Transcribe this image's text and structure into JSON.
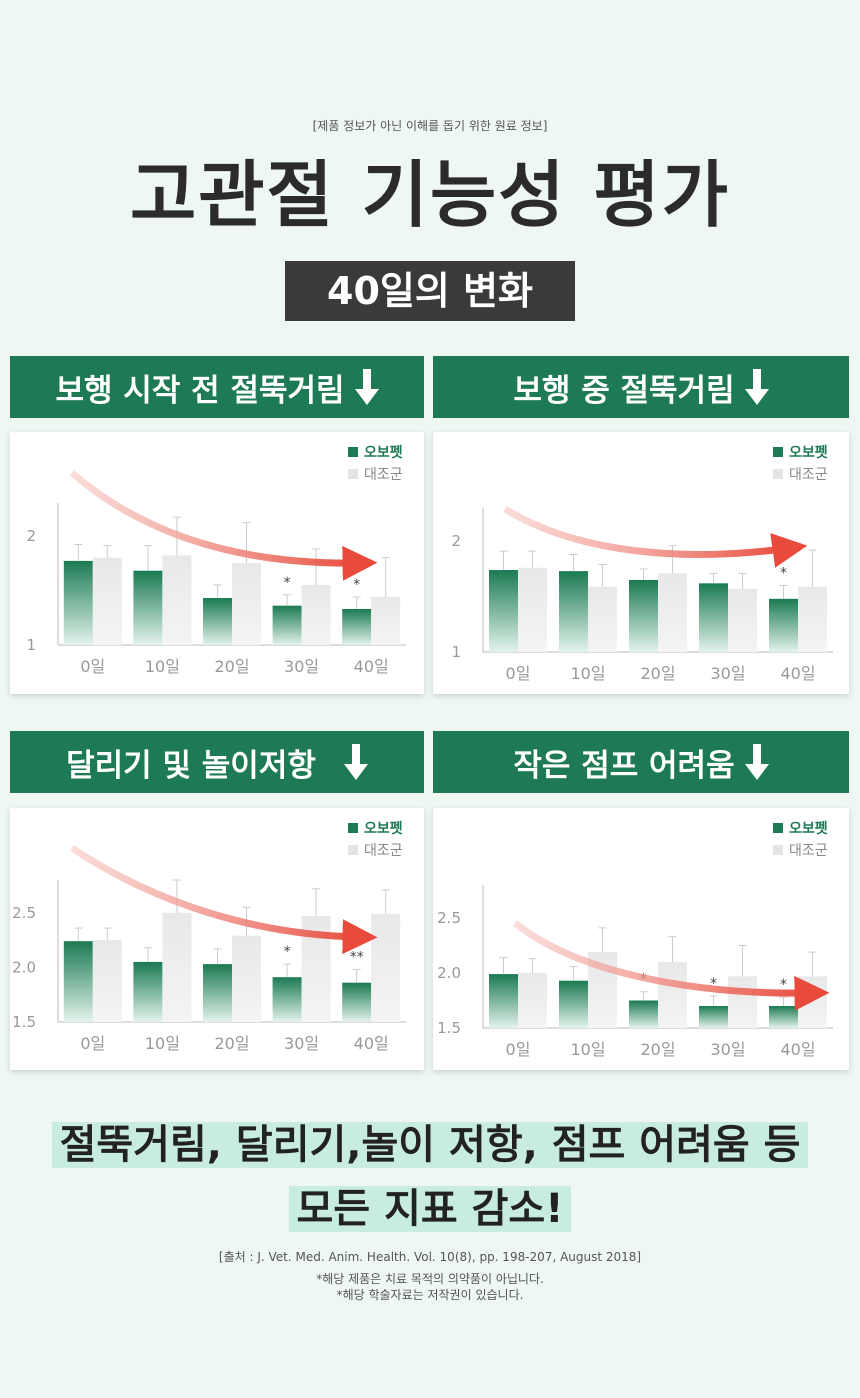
{
  "header": {
    "disclaimer": "[제품 정보가 아닌 이해를 돕기 위한 원료 정보]",
    "title": "고관절 기능성 평가",
    "subtitle": "40일의 변화"
  },
  "legend": {
    "product": "오보펫",
    "control": "대조군"
  },
  "colors": {
    "banner": "#1e7a55",
    "product": "#1e7a55",
    "control": "#e6e6e6",
    "arrow": "#e84a3c"
  },
  "panels": [
    {
      "title": "보행 시작 전 절뚝거림"
    },
    {
      "title": "보행 중 절뚝거림"
    },
    {
      "title": "달리기 및 놀이저항"
    },
    {
      "title": "작은 점프 어려움"
    }
  ],
  "chart_data": [
    {
      "type": "bar",
      "categories": [
        "0일",
        "10일",
        "20일",
        "30일",
        "40일"
      ],
      "yticks": [
        "2",
        "1"
      ],
      "ytick_values": [
        2,
        1
      ],
      "ylim": [
        1,
        2.3
      ],
      "series": [
        {
          "name": "오보펫",
          "values": [
            1.77,
            1.68,
            1.43,
            1.36,
            1.33
          ],
          "errors": [
            0.15,
            0.23,
            0.12,
            0.1,
            0.11
          ]
        },
        {
          "name": "대조군",
          "values": [
            1.8,
            1.82,
            1.75,
            1.55,
            1.44
          ],
          "errors": [
            0.11,
            0.35,
            0.37,
            0.33,
            0.36
          ]
        }
      ],
      "significance": [
        "",
        "",
        "",
        "*",
        "*"
      ],
      "trend_arrow": "decreasing"
    },
    {
      "type": "bar",
      "categories": [
        "0일",
        "10일",
        "20일",
        "30일",
        "40일"
      ],
      "yticks": [
        "2",
        "1"
      ],
      "ytick_values": [
        2,
        1
      ],
      "ylim": [
        1,
        2.3
      ],
      "series": [
        {
          "name": "오보펫",
          "values": [
            1.74,
            1.73,
            1.65,
            1.62,
            1.48
          ],
          "errors": [
            0.17,
            0.15,
            0.1,
            0.09,
            0.12
          ]
        },
        {
          "name": "대조군",
          "values": [
            1.76,
            1.59,
            1.71,
            1.57,
            1.59
          ],
          "errors": [
            0.15,
            0.2,
            0.25,
            0.14,
            0.33
          ]
        }
      ],
      "significance": [
        "",
        "",
        "",
        "",
        "*"
      ],
      "trend_arrow": "decreasing"
    },
    {
      "type": "bar",
      "categories": [
        "0일",
        "10일",
        "20일",
        "30일",
        "40일"
      ],
      "yticks": [
        "2.5",
        "2.0",
        "1.5"
      ],
      "ytick_values": [
        2.5,
        2.0,
        1.5
      ],
      "ylim": [
        1.5,
        2.8
      ],
      "series": [
        {
          "name": "오보펫",
          "values": [
            2.24,
            2.05,
            2.03,
            1.91,
            1.86
          ],
          "errors": [
            0.12,
            0.13,
            0.14,
            0.12,
            0.12
          ]
        },
        {
          "name": "대조군",
          "values": [
            2.25,
            2.5,
            2.29,
            2.47,
            2.49
          ],
          "errors": [
            0.11,
            0.3,
            0.26,
            0.25,
            0.22
          ]
        }
      ],
      "significance": [
        "",
        "",
        "",
        "*",
        "**"
      ],
      "trend_arrow": "decreasing"
    },
    {
      "type": "bar",
      "categories": [
        "0일",
        "10일",
        "20일",
        "30일",
        "40일"
      ],
      "yticks": [
        "2.5",
        "2.0",
        "1.5"
      ],
      "ytick_values": [
        2.5,
        2.0,
        1.5
      ],
      "ylim": [
        1.5,
        2.8
      ],
      "series": [
        {
          "name": "오보펫",
          "values": [
            1.99,
            1.93,
            1.75,
            1.7,
            1.7
          ],
          "errors": [
            0.15,
            0.13,
            0.08,
            0.09,
            0.08
          ]
        },
        {
          "name": "대조군",
          "values": [
            2.0,
            2.19,
            2.1,
            1.97,
            1.97
          ],
          "errors": [
            0.13,
            0.22,
            0.23,
            0.28,
            0.22
          ]
        }
      ],
      "significance": [
        "",
        "",
        "*",
        "*",
        "*"
      ],
      "trend_arrow": "decreasing"
    }
  ],
  "conclusion": {
    "line1": "절뚝거림, 달리기,놀이 저항, 점프 어려움 등",
    "line2": "모든 지표 감소!"
  },
  "source": {
    "citation": "[출처 :  J. Vet. Med. Anim. Health. Vol. 10(8), pp. 198-207, August 2018]",
    "note1": "*해당 제품은 치료 목적의 의약품이 아닙니다.",
    "note2": "*해당 학술자료는 저작권이 있습니다."
  }
}
